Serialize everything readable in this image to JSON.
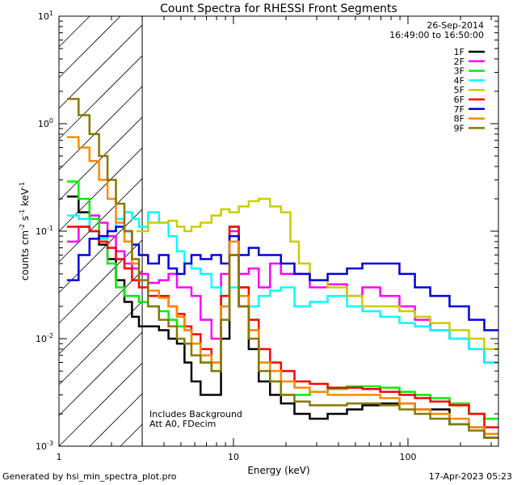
{
  "chart_data": {
    "type": "line",
    "title": "Count Spectra for RHESSI Front Segments",
    "xlabel": "Energy (keV)",
    "ylabel_parts": [
      "counts cm",
      "-2",
      " s",
      "-1",
      " keV",
      "-1"
    ],
    "xscale": "log",
    "yscale": "log",
    "xlim": [
      1,
      330
    ],
    "ylim": [
      0.001,
      10
    ],
    "x_ticks": [
      {
        "value": 1,
        "label": "1"
      },
      {
        "value": 10,
        "label": "10"
      },
      {
        "value": 100,
        "label": "100"
      }
    ],
    "y_ticks": [
      {
        "value": 10,
        "label": "10",
        "exp": "1"
      },
      {
        "value": 1,
        "label": "10",
        "exp": "0"
      },
      {
        "value": 0.1,
        "label": "10",
        "exp": "-1"
      },
      {
        "value": 0.01,
        "label": "10",
        "exp": "-2"
      },
      {
        "value": 0.001,
        "label": "10",
        "exp": "-3"
      }
    ],
    "date": "26-Sep-2014",
    "time_range": "16:49:00 to 16:50:00",
    "hatched_region_max_energy": 3,
    "annotation_lines": [
      "Includes Background",
      "Att A0, FDecim"
    ],
    "legend_position": "top-right",
    "series": [
      {
        "name": "1F",
        "color": "#000000",
        "x": [
          1.2,
          1.4,
          1.6,
          1.8,
          2.0,
          2.25,
          2.5,
          2.75,
          3.0,
          3.5,
          4.0,
          4.5,
          5.0,
          5.5,
          6.0,
          7.0,
          8.0,
          9.0,
          10.0,
          11.5,
          13.0,
          15.0,
          17.5,
          20.0,
          25.0,
          30.0,
          40.0,
          50.0,
          60.0,
          80.0,
          100.0,
          120.0,
          150.0,
          200.0,
          250.0,
          300.0
        ],
        "y": [
          0.21,
          0.15,
          0.1,
          0.075,
          0.055,
          0.035,
          0.022,
          0.016,
          0.013,
          0.013,
          0.012,
          0.01,
          0.009,
          0.006,
          0.004,
          0.003,
          0.003,
          0.01,
          0.06,
          0.02,
          0.008,
          0.004,
          0.003,
          0.0025,
          0.002,
          0.0018,
          0.002,
          0.0022,
          0.0024,
          0.0025,
          0.0025,
          0.0022,
          0.0022,
          0.0016,
          0.0015,
          0.0012
        ]
      },
      {
        "name": "2F",
        "color": "#ff00ff",
        "x": [
          1.2,
          1.4,
          1.6,
          1.8,
          2.0,
          2.25,
          2.5,
          2.75,
          3.0,
          3.5,
          4.0,
          4.5,
          5.0,
          5.5,
          6.0,
          7.0,
          8.0,
          9.0,
          10.0,
          11.5,
          13.0,
          15.0,
          17.5,
          20.0,
          25.0,
          30.0,
          40.0,
          50.0,
          60.0,
          80.0,
          100.0,
          120.0,
          150.0,
          200.0,
          250.0,
          300.0
        ],
        "y": [
          0.08,
          0.11,
          0.14,
          0.12,
          0.09,
          0.065,
          0.05,
          0.045,
          0.04,
          0.033,
          0.035,
          0.04,
          0.03,
          0.03,
          0.025,
          0.015,
          0.01,
          0.04,
          0.1,
          0.04,
          0.045,
          0.03,
          0.05,
          0.04,
          0.04,
          0.03,
          0.032,
          0.025,
          0.03,
          0.025,
          0.02,
          0.015,
          0.012,
          0.01,
          0.008,
          0.006
        ]
      },
      {
        "name": "3F",
        "color": "#00ee00",
        "x": [
          1.2,
          1.4,
          1.6,
          1.8,
          2.0,
          2.25,
          2.5,
          2.75,
          3.0,
          3.5,
          4.0,
          4.5,
          5.0,
          5.5,
          6.0,
          7.0,
          8.0,
          9.0,
          10.0,
          11.5,
          13.0,
          15.0,
          17.5,
          20.0,
          25.0,
          30.0,
          40.0,
          50.0,
          60.0,
          80.0,
          100.0,
          120.0,
          150.0,
          200.0,
          250.0,
          300.0
        ],
        "y": [
          0.29,
          0.2,
          0.13,
          0.08,
          0.05,
          0.03,
          0.025,
          0.025,
          0.022,
          0.02,
          0.018,
          0.015,
          0.013,
          0.012,
          0.009,
          0.006,
          0.005,
          0.02,
          0.11,
          0.03,
          0.012,
          0.006,
          0.004,
          0.003,
          0.003,
          0.0032,
          0.0034,
          0.0036,
          0.0036,
          0.0035,
          0.0032,
          0.003,
          0.0028,
          0.0025,
          0.002,
          0.0018
        ]
      },
      {
        "name": "4F",
        "color": "#00ffff",
        "x": [
          1.2,
          1.4,
          1.6,
          1.8,
          2.0,
          2.25,
          2.5,
          2.75,
          3.0,
          3.5,
          4.0,
          4.5,
          5.0,
          5.5,
          6.0,
          7.0,
          8.0,
          9.0,
          10.0,
          11.5,
          13.0,
          15.0,
          17.5,
          20.0,
          25.0,
          30.0,
          40.0,
          50.0,
          60.0,
          80.0,
          100.0,
          120.0,
          150.0,
          200.0,
          250.0,
          300.0
        ],
        "y": [
          0.14,
          0.13,
          0.1,
          0.085,
          0.1,
          0.13,
          0.15,
          0.13,
          0.11,
          0.15,
          0.12,
          0.09,
          0.065,
          0.05,
          0.045,
          0.04,
          0.03,
          0.02,
          0.03,
          0.025,
          0.02,
          0.025,
          0.028,
          0.03,
          0.02,
          0.022,
          0.025,
          0.02,
          0.018,
          0.016,
          0.014,
          0.013,
          0.012,
          0.01,
          0.008,
          0.006
        ]
      },
      {
        "name": "5F",
        "color": "#cccc00",
        "x": [
          3.0,
          3.5,
          4.0,
          4.5,
          5.0,
          5.5,
          6.0,
          7.0,
          8.0,
          9.0,
          10.0,
          11.5,
          13.0,
          15.0,
          17.5,
          20.0,
          22.5,
          25.0,
          30.0,
          40.0,
          50.0,
          60.0,
          80.0,
          100.0,
          120.0,
          150.0,
          200.0,
          250.0,
          300.0
        ],
        "y": [
          0.1,
          0.12,
          0.12,
          0.125,
          0.11,
          0.1,
          0.11,
          0.12,
          0.14,
          0.16,
          0.15,
          0.17,
          0.19,
          0.2,
          0.17,
          0.15,
          0.08,
          0.05,
          0.035,
          0.03,
          0.025,
          0.02,
          0.02,
          0.018,
          0.016,
          0.014,
          0.012,
          0.01,
          0.008
        ]
      },
      {
        "name": "6F",
        "color": "#ff0000",
        "x": [
          1.2,
          1.4,
          1.6,
          1.8,
          2.0,
          2.25,
          2.5,
          2.75,
          3.0,
          3.5,
          4.0,
          4.5,
          5.0,
          5.5,
          6.0,
          7.0,
          8.0,
          9.0,
          10.0,
          11.5,
          13.0,
          15.0,
          17.5,
          20.0,
          25.0,
          30.0,
          40.0,
          50.0,
          60.0,
          80.0,
          100.0,
          120.0,
          150.0,
          200.0,
          250.0,
          300.0
        ],
        "y": [
          0.11,
          0.11,
          0.1,
          0.08,
          0.07,
          0.055,
          0.045,
          0.035,
          0.03,
          0.025,
          0.025,
          0.02,
          0.017,
          0.013,
          0.011,
          0.008,
          0.006,
          0.025,
          0.11,
          0.03,
          0.015,
          0.008,
          0.006,
          0.005,
          0.004,
          0.0038,
          0.0035,
          0.0035,
          0.0034,
          0.0032,
          0.003,
          0.0028,
          0.0026,
          0.0024,
          0.002,
          0.0015
        ]
      },
      {
        "name": "7F",
        "color": "#0000dd",
        "x": [
          1.2,
          1.4,
          1.6,
          1.8,
          2.0,
          2.25,
          2.5,
          2.75,
          3.0,
          3.5,
          4.0,
          4.5,
          5.0,
          5.5,
          6.0,
          7.0,
          8.0,
          9.0,
          10.0,
          11.5,
          13.0,
          15.0,
          17.5,
          20.0,
          25.0,
          30.0,
          40.0,
          50.0,
          60.0,
          80.0,
          100.0,
          120.0,
          150.0,
          200.0,
          250.0,
          300.0
        ],
        "y": [
          0.035,
          0.06,
          0.085,
          0.09,
          0.1,
          0.11,
          0.1,
          0.075,
          0.06,
          0.05,
          0.06,
          0.045,
          0.04,
          0.05,
          0.06,
          0.055,
          0.06,
          0.05,
          0.09,
          0.06,
          0.07,
          0.06,
          0.06,
          0.05,
          0.04,
          0.035,
          0.04,
          0.045,
          0.05,
          0.05,
          0.04,
          0.03,
          0.025,
          0.02,
          0.015,
          0.012
        ]
      },
      {
        "name": "8F",
        "color": "#ff8800",
        "x": [
          1.2,
          1.4,
          1.6,
          1.8,
          2.0,
          2.25,
          2.5,
          2.75,
          3.0,
          3.5,
          4.0,
          4.5,
          5.0,
          5.5,
          6.0,
          7.0,
          8.0,
          9.0,
          10.0,
          11.5,
          13.0,
          15.0,
          17.5,
          20.0,
          25.0,
          30.0,
          40.0,
          50.0,
          60.0,
          80.0,
          100.0,
          120.0,
          150.0,
          200.0,
          250.0,
          300.0
        ],
        "y": [
          0.75,
          0.6,
          0.45,
          0.3,
          0.2,
          0.12,
          0.08,
          0.05,
          0.035,
          0.028,
          0.024,
          0.02,
          0.016,
          0.012,
          0.009,
          0.007,
          0.006,
          0.02,
          0.08,
          0.025,
          0.012,
          0.006,
          0.005,
          0.004,
          0.0035,
          0.0032,
          0.003,
          0.003,
          0.003,
          0.0028,
          0.0025,
          0.0022,
          0.002,
          0.0018,
          0.0015,
          0.0013
        ]
      },
      {
        "name": "9F",
        "color": "#887700",
        "x": [
          1.2,
          1.4,
          1.6,
          1.8,
          2.0,
          2.25,
          2.5,
          2.75,
          3.0,
          3.5,
          4.0,
          4.5,
          5.0,
          5.5,
          6.0,
          7.0,
          8.0,
          9.0,
          10.0,
          11.5,
          13.0,
          15.0,
          17.5,
          20.0,
          25.0,
          30.0,
          40.0,
          50.0,
          60.0,
          80.0,
          100.0,
          120.0,
          150.0,
          200.0,
          250.0,
          300.0
        ],
        "y": [
          1.7,
          1.2,
          0.8,
          0.5,
          0.3,
          0.18,
          0.1,
          0.055,
          0.035,
          0.02,
          0.015,
          0.013,
          0.01,
          0.009,
          0.007,
          0.006,
          0.005,
          0.015,
          0.06,
          0.02,
          0.01,
          0.005,
          0.004,
          0.003,
          0.0026,
          0.0024,
          0.0024,
          0.0025,
          0.0025,
          0.0024,
          0.0022,
          0.002,
          0.0018,
          0.0016,
          0.0014,
          0.0012
        ]
      }
    ]
  },
  "footer": {
    "left": "Generated by hsi_min_spectra_plot.pro",
    "right": "17-Apr-2023 05:23"
  }
}
